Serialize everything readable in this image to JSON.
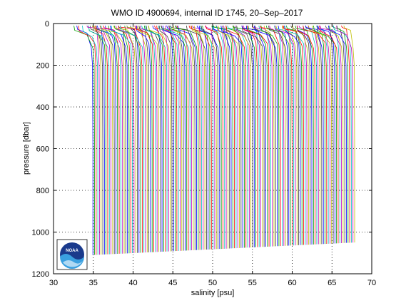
{
  "chart_data": {
    "type": "line",
    "title": "WMO ID 4900694, internal ID 1745, 20–Sep–2017",
    "xlabel": "salinity [psu]",
    "ylabel": "pressure [dbar]",
    "xlim": [
      30,
      70
    ],
    "ylim": [
      0,
      1200
    ],
    "y_reversed": true,
    "grid": true,
    "xticks": [
      "30",
      "35",
      "40",
      "45",
      "50",
      "55",
      "60",
      "65",
      "70"
    ],
    "yticks": [
      "0",
      "200",
      "400",
      "600",
      "800",
      "1000",
      "1200"
    ],
    "series_colors": [
      "#0000ff",
      "#00a000",
      "#ff0000",
      "#00bfbf",
      "#bf00bf",
      "#bfbf00",
      "#404040"
    ],
    "profiles": {
      "description_of_construction": "Waterfall of float profiles; each successive profile offset in salinity",
      "count": 160,
      "first_deep_salinity": 34.9,
      "last_deep_salinity": 67.8,
      "surface_pressure": 10,
      "bottom_pressure_first": 1110,
      "bottom_pressure_last": 1050
    }
  },
  "logo": {
    "text": "NOAA"
  }
}
